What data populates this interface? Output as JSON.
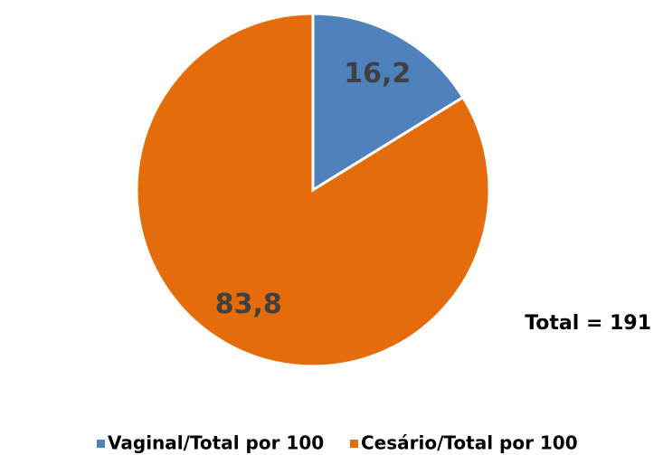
{
  "chart_data": {
    "type": "pie",
    "categories": [
      "Vaginal/Total por 100",
      "Cesário/Total por 100"
    ],
    "values": [
      16.2,
      83.8
    ],
    "value_labels": [
      "16,2",
      "83,8"
    ],
    "colors": [
      "#4f81bd",
      "#e46c0a"
    ],
    "annotation": "Total = 191",
    "legend": "bottom"
  }
}
